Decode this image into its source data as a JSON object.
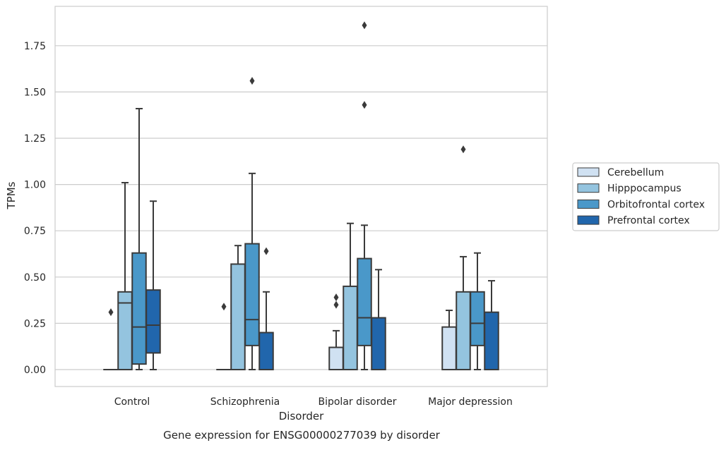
{
  "chart_data": {
    "type": "box",
    "title": "Gene expression for ENSG00000277039 by disorder",
    "xlabel": "Disorder",
    "ylabel": "TPMs",
    "categories": [
      "Control",
      "Schizophrenia",
      "Bipolar disorder",
      "Major depression"
    ],
    "ylim": [
      -0.09,
      1.96
    ],
    "yticks": [
      "0.00",
      "0.25",
      "0.50",
      "0.75",
      "1.00",
      "1.25",
      "1.50",
      "1.75"
    ],
    "grid": "horizontal",
    "legend_position": "center-right",
    "series": [
      {
        "name": "Cerebellum",
        "color": "#d0e1f2",
        "boxes": [
          {
            "min": 0.0,
            "q1": 0.0,
            "median": 0.0,
            "q3": 0.0,
            "max": 0.0,
            "outliers": [
              0.31
            ]
          },
          {
            "min": 0.0,
            "q1": 0.0,
            "median": 0.0,
            "q3": 0.0,
            "max": 0.0,
            "outliers": [
              0.34
            ]
          },
          {
            "min": 0.0,
            "q1": 0.0,
            "median": 0.0,
            "q3": 0.12,
            "max": 0.21,
            "outliers": [
              0.35,
              0.39
            ]
          },
          {
            "min": 0.0,
            "q1": 0.0,
            "median": 0.0,
            "q3": 0.23,
            "max": 0.32,
            "outliers": []
          }
        ]
      },
      {
        "name": "Hipppocampus",
        "color": "#94c4df",
        "boxes": [
          {
            "min": 0.0,
            "q1": 0.0,
            "median": 0.36,
            "q3": 0.42,
            "max": 1.01,
            "outliers": []
          },
          {
            "min": 0.0,
            "q1": 0.0,
            "median": 0.0,
            "q3": 0.57,
            "max": 0.67,
            "outliers": []
          },
          {
            "min": 0.0,
            "q1": 0.0,
            "median": 0.0,
            "q3": 0.45,
            "max": 0.79,
            "outliers": []
          },
          {
            "min": 0.0,
            "q1": 0.0,
            "median": 0.0,
            "q3": 0.42,
            "max": 0.61,
            "outliers": [
              1.19
            ]
          }
        ]
      },
      {
        "name": "Orbitofrontal cortex",
        "color": "#4a98c9",
        "boxes": [
          {
            "min": 0.0,
            "q1": 0.03,
            "median": 0.23,
            "q3": 0.63,
            "max": 1.41,
            "outliers": []
          },
          {
            "min": 0.0,
            "q1": 0.13,
            "median": 0.27,
            "q3": 0.68,
            "max": 1.06,
            "outliers": [
              1.56
            ]
          },
          {
            "min": 0.0,
            "q1": 0.13,
            "median": 0.28,
            "q3": 0.6,
            "max": 0.78,
            "outliers": [
              1.43,
              1.86
            ]
          },
          {
            "min": 0.0,
            "q1": 0.13,
            "median": 0.25,
            "q3": 0.42,
            "max": 0.63,
            "outliers": []
          }
        ]
      },
      {
        "name": "Prefrontal cortex",
        "color": "#2166ac",
        "boxes": [
          {
            "min": 0.0,
            "q1": 0.09,
            "median": 0.24,
            "q3": 0.43,
            "max": 0.91,
            "outliers": []
          },
          {
            "min": 0.0,
            "q1": 0.0,
            "median": 0.0,
            "q3": 0.2,
            "max": 0.42,
            "outliers": [
              0.64
            ]
          },
          {
            "min": 0.0,
            "q1": 0.0,
            "median": 0.0,
            "q3": 0.28,
            "max": 0.54,
            "outliers": []
          },
          {
            "min": 0.0,
            "q1": 0.0,
            "median": 0.0,
            "q3": 0.31,
            "max": 0.48,
            "outliers": []
          }
        ]
      }
    ]
  }
}
